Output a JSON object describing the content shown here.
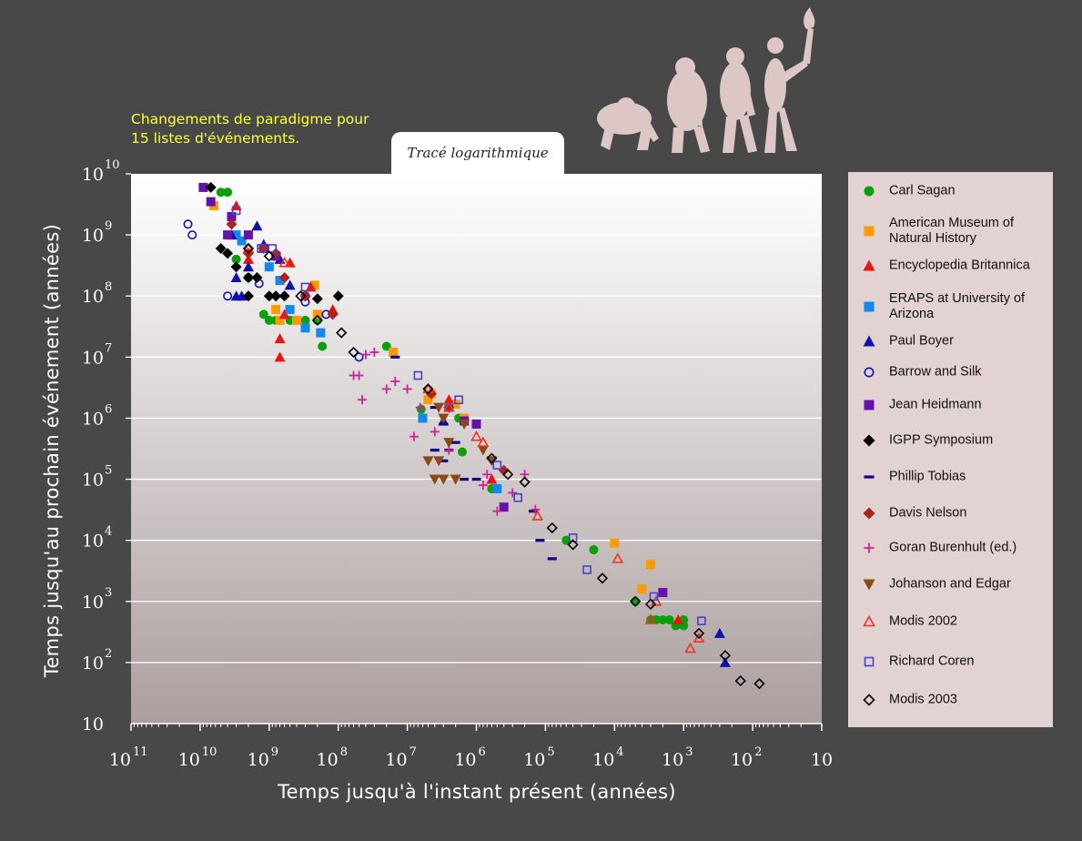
{
  "title_tab": "Tracé logarithmique",
  "subtitle": "Changements de paradigme pour 15 listes d'événements.",
  "chart_data": {
    "type": "scatter",
    "xlabel": "Temps jusqu'à l'instant présent (années)",
    "ylabel": "Temps jusqu'au prochain événement (années)",
    "x_scale": "log",
    "y_scale": "log",
    "x_reversed": true,
    "xlim": [
      100000000000.0,
      10
    ],
    "ylim": [
      10,
      10000000000.0
    ],
    "x_ticks": [
      {
        "base": "10",
        "exp": "11"
      },
      {
        "base": "10",
        "exp": "10"
      },
      {
        "base": "10",
        "exp": "9"
      },
      {
        "base": "10",
        "exp": "8"
      },
      {
        "base": "10",
        "exp": "7"
      },
      {
        "base": "10",
        "exp": "6"
      },
      {
        "base": "10",
        "exp": "5"
      },
      {
        "base": "10",
        "exp": "4"
      },
      {
        "base": "10",
        "exp": "3"
      },
      {
        "base": "10",
        "exp": "2"
      },
      {
        "base": "10",
        "exp": ""
      }
    ],
    "y_ticks": [
      {
        "base": "10",
        "exp": "10"
      },
      {
        "base": "10",
        "exp": "9"
      },
      {
        "base": "10",
        "exp": "8"
      },
      {
        "base": "10",
        "exp": "7"
      },
      {
        "base": "10",
        "exp": "6"
      },
      {
        "base": "10",
        "exp": "5"
      },
      {
        "base": "10",
        "exp": "4"
      },
      {
        "base": "10",
        "exp": "3"
      },
      {
        "base": "10",
        "exp": "2"
      },
      {
        "base": "10",
        "exp": ""
      }
    ],
    "grid": true,
    "legend_position": "right",
    "series": [
      {
        "name": "Carl Sagan",
        "marker": "circle-filled",
        "color": "#0aa00a",
        "points": [
          [
            5000000000.0,
            5000000000.0
          ],
          [
            4000000000.0,
            5000000000.0
          ],
          [
            3000000000.0,
            400000000.0
          ],
          [
            2000000000.0,
            200000000.0
          ],
          [
            1200000000.0,
            50000000.0
          ],
          [
            1000000000.0,
            40000000.0
          ],
          [
            800000000.0,
            40000000.0
          ],
          [
            500000000.0,
            40000000.0
          ],
          [
            300000000.0,
            40000000.0
          ],
          [
            200000000.0,
            40000000.0
          ],
          [
            170000000.0,
            15000000.0
          ],
          [
            20000000.0,
            15000000.0
          ],
          [
            1600000.0,
            280000.0
          ],
          [
            600000.0,
            70000.0
          ],
          [
            50000.0,
            10000.0
          ],
          [
            20000.0,
            7000.0
          ],
          [
            5000.0,
            1000.0
          ],
          [
            3000,
            500
          ],
          [
            2500,
            500
          ],
          [
            2000,
            500
          ],
          [
            1600,
            500
          ],
          [
            1300,
            400
          ],
          [
            1000,
            400
          ],
          [
            1000,
            500
          ],
          [
            1800000.0,
            1000000.0
          ],
          [
            6300000.0,
            1400000.0
          ]
        ]
      },
      {
        "name": "American Museum of Natural History",
        "marker": "square-filled",
        "color": "#ff9900",
        "points": [
          [
            6300000000.0,
            3000000000.0
          ],
          [
            800000000.0,
            60000000.0
          ],
          [
            700000000.0,
            40000000.0
          ],
          [
            400000000.0,
            40000000.0
          ],
          [
            200000000.0,
            50000000.0
          ],
          [
            5000000.0,
            2000000.0
          ],
          [
            2000000.0,
            1700000.0
          ],
          [
            1500000.0,
            1000000.0
          ],
          [
            4500000.0,
            2500000.0
          ],
          [
            16000000.0,
            12000000.0
          ],
          [
            4000.0,
            1600.0
          ],
          [
            3000.0,
            4000.0
          ],
          [
            10000.0,
            9000.0
          ],
          [
            220000000.0,
            150000000.0
          ]
        ]
      },
      {
        "name": "Encyclopedia Britannica",
        "marker": "triangle-filled",
        "color": "#ee1111",
        "points": [
          [
            3000000000.0,
            3000000000.0
          ],
          [
            2000000000.0,
            400000000.0
          ],
          [
            700000000.0,
            20000000.0
          ],
          [
            700000000.0,
            10000000.0
          ],
          [
            500000000.0,
            350000000.0
          ],
          [
            250000000.0,
            140000000.0
          ],
          [
            120000000.0,
            60000000.0
          ],
          [
            2500000.0,
            2000000.0
          ],
          [
            600000.0,
            100000.0
          ],
          [
            1200.0,
            500
          ],
          [
            600000000.0,
            50000000.0
          ]
        ]
      },
      {
        "name": "ERAPS at University of Arizona",
        "marker": "square-filled",
        "color": "#1188ee",
        "points": [
          [
            3000000000.0,
            1000000000.0
          ],
          [
            2500000000.0,
            800000000.0
          ],
          [
            1000000000.0,
            300000000.0
          ],
          [
            700000000.0,
            180000000.0
          ],
          [
            500000000.0,
            60000000.0
          ],
          [
            300000000.0,
            30000000.0
          ],
          [
            180000000.0,
            25000000.0
          ],
          [
            6000000.0,
            1000000.0
          ],
          [
            2500000.0,
            1500000.0
          ],
          [
            500000.0,
            70000.0
          ]
        ]
      },
      {
        "name": "Paul Boyer",
        "marker": "triangle-filled",
        "color": "#1111aa",
        "points": [
          [
            3500000000.0,
            1000000000.0
          ],
          [
            3000000000.0,
            200000000.0
          ],
          [
            2500000000.0,
            100000000.0
          ],
          [
            3000000000.0,
            100000000.0
          ],
          [
            2000000000.0,
            300000000.0
          ],
          [
            1500000000.0,
            1400000000.0
          ],
          [
            1200000000.0,
            700000000.0
          ],
          [
            700000000.0,
            400000000.0
          ],
          [
            500000000.0,
            150000000.0
          ],
          [
            3000000.0,
            900000.0
          ],
          [
            300,
            300
          ],
          [
            250,
            100
          ]
        ]
      },
      {
        "name": "Barrow and Silk",
        "marker": "circle-open",
        "color": "#1111aa",
        "points": [
          [
            15000000000.0,
            1500000000.0
          ],
          [
            13000000000.0,
            1000000000.0
          ],
          [
            4000000000.0,
            100000000.0
          ],
          [
            300000000.0,
            80000000.0
          ],
          [
            150000000.0,
            50000000.0
          ],
          [
            50000000.0,
            10000000.0
          ],
          [
            300000000.0,
            100000000.0
          ],
          [
            1400000000.0,
            160000000.0
          ]
        ]
      },
      {
        "name": "Jean Heidmann",
        "marker": "square-filled",
        "color": "#6611aa",
        "points": [
          [
            9000000000.0,
            6000000000.0
          ],
          [
            7000000000.0,
            3500000000.0
          ],
          [
            3500000000.0,
            2000000000.0
          ],
          [
            4000000000.0,
            1000000000.0
          ],
          [
            2000000000.0,
            1000000000.0
          ],
          [
            1200000000.0,
            600000000.0
          ],
          [
            800000000.0,
            450000000.0
          ],
          [
            400000.0,
            35000.0
          ],
          [
            2000.0,
            1400.0
          ],
          [
            1500000.0,
            900000.0
          ],
          [
            1000000.0,
            800000.0
          ]
        ]
      },
      {
        "name": "IGPP Symposium",
        "marker": "diamond-filled",
        "color": "#000000",
        "points": [
          [
            7000000000.0,
            6000000000.0
          ],
          [
            5000000000.0,
            600000000.0
          ],
          [
            4000000000.0,
            500000000.0
          ],
          [
            3000000000.0,
            300000000.0
          ],
          [
            2000000000.0,
            200000000.0
          ],
          [
            2000000000.0,
            100000000.0
          ],
          [
            1500000000.0,
            200000000.0
          ],
          [
            1000000000.0,
            100000000.0
          ],
          [
            800000000.0,
            100000000.0
          ],
          [
            600000000.0,
            100000000.0
          ],
          [
            300000000.0,
            100000000.0
          ],
          [
            200000000.0,
            90000000.0
          ],
          [
            100000000.0,
            100000000.0
          ]
        ]
      },
      {
        "name": "Phillip Tobias",
        "marker": "dash",
        "color": "#110088",
        "points": [
          [
            15000000.0,
            10000000.0
          ],
          [
            4000000.0,
            1500000.0
          ],
          [
            3000000.0,
            800000.0
          ],
          [
            2000000.0,
            400000.0
          ],
          [
            1500000.0,
            100000.0
          ],
          [
            1000000.0,
            100000.0
          ],
          [
            3000000.0,
            200000.0
          ],
          [
            2500000.0,
            300000.0
          ],
          [
            150000.0,
            30000.0
          ],
          [
            80000.0,
            5000.0
          ],
          [
            120000.0,
            10000.0
          ],
          [
            4000000.0,
            300000.0
          ]
        ]
      },
      {
        "name": "Davis Nelson",
        "marker": "diamond-filled",
        "color": "#aa2222",
        "points": [
          [
            3500000000.0,
            1500000000.0
          ],
          [
            2000000000.0,
            500000000.0
          ],
          [
            1200000000.0,
            600000000.0
          ],
          [
            800000000.0,
            500000000.0
          ],
          [
            600000000.0,
            200000000.0
          ],
          [
            300000000.0,
            100000000.0
          ],
          [
            120000000.0,
            50000000.0
          ],
          [
            4500000.0,
            2500000.0
          ],
          [
            2500000.0,
            1500000.0
          ],
          [
            400000.0,
            140000.0
          ]
        ]
      },
      {
        "name": "Goran Burenhult (ed.)",
        "marker": "plus",
        "color": "#cc2299",
        "points": [
          [
            60000000.0,
            5000000.0
          ],
          [
            50000000.0,
            5000000.0
          ],
          [
            45000000.0,
            2000000.0
          ],
          [
            40000000.0,
            11000000.0
          ],
          [
            30000000.0,
            12000000.0
          ],
          [
            20000000.0,
            3000000.0
          ],
          [
            15000000.0,
            4000000.0
          ],
          [
            10000000.0,
            3000000.0
          ],
          [
            8000000.0,
            500000.0
          ],
          [
            6500000.0,
            1500000.0
          ],
          [
            4000000.0,
            600000.0
          ],
          [
            2500000.0,
            300000.0
          ],
          [
            800000.0,
            80000.0
          ],
          [
            700000.0,
            120000.0
          ],
          [
            500000.0,
            30000.0
          ],
          [
            300000.0,
            60000.0
          ],
          [
            200000.0,
            120000.0
          ],
          [
            140000.0,
            32000.0
          ]
        ]
      },
      {
        "name": "Johanson and Edgar",
        "marker": "triangle-down-filled",
        "color": "#8b4a14",
        "points": [
          [
            5000000.0,
            200000.0
          ],
          [
            4000000.0,
            100000.0
          ],
          [
            3500000.0,
            200000.0
          ],
          [
            3000000.0,
            100000.0
          ],
          [
            2500000.0,
            400000.0
          ],
          [
            2000000.0,
            100000.0
          ],
          [
            1500000.0,
            800000.0
          ],
          [
            800000.0,
            300000.0
          ],
          [
            600000.0,
            200000.0
          ],
          [
            3000000.0,
            1000000.0
          ],
          [
            3500000.0,
            1500000.0
          ]
        ]
      },
      {
        "name": "Modis 2002",
        "marker": "triangle-open",
        "color": "#ee3322",
        "points": [
          [
            2000000000.0,
            600000000.0
          ],
          [
            600000000.0,
            350000000.0
          ],
          [
            5000000.0,
            3000000.0
          ],
          [
            2500000.0,
            1500000.0
          ],
          [
            1000000.0,
            500000.0
          ],
          [
            800000.0,
            400000.0
          ],
          [
            130000.0,
            25000.0
          ],
          [
            9000.0,
            5000.0
          ],
          [
            3000.0,
            500
          ],
          [
            800,
            170
          ],
          [
            600,
            250
          ],
          [
            2500.0,
            1000.0
          ]
        ]
      },
      {
        "name": "Richard Coren",
        "marker": "square-open",
        "color": "#4444cc",
        "points": [
          [
            3000000000.0,
            2500000000.0
          ],
          [
            1300000000.0,
            600000000.0
          ],
          [
            900000000.0,
            600000000.0
          ],
          [
            300000000.0,
            140000000.0
          ],
          [
            7000000.0,
            5000000.0
          ],
          [
            1800000.0,
            2000000.0
          ],
          [
            500000.0,
            170000.0
          ],
          [
            250000.0,
            50000.0
          ],
          [
            40000.0,
            11000.0
          ],
          [
            25000.0,
            3300.0
          ],
          [
            2700.0,
            1200.0
          ],
          [
            550,
            480
          ]
        ]
      },
      {
        "name": "Modis 2003",
        "marker": "diamond-open",
        "color": "#000000",
        "points": [
          [
            2000000000.0,
            600000000.0
          ],
          [
            1000000000.0,
            450000000.0
          ],
          [
            350000000.0,
            100000000.0
          ],
          [
            200000000.0,
            40000000.0
          ],
          [
            90000000.0,
            25000000.0
          ],
          [
            60000000.0,
            12000000.0
          ],
          [
            5000000.0,
            3000000.0
          ],
          [
            600000.0,
            220000.0
          ],
          [
            350000.0,
            120000.0
          ],
          [
            200000.0,
            90000.0
          ],
          [
            80000.0,
            16000.0
          ],
          [
            40000.0,
            8500.0
          ],
          [
            15000.0,
            2400.0
          ],
          [
            5000.0,
            1000.0
          ],
          [
            3000.0,
            900
          ],
          [
            600,
            300
          ],
          [
            250,
            130
          ],
          [
            150,
            50
          ],
          [
            80,
            45
          ]
        ]
      }
    ]
  }
}
